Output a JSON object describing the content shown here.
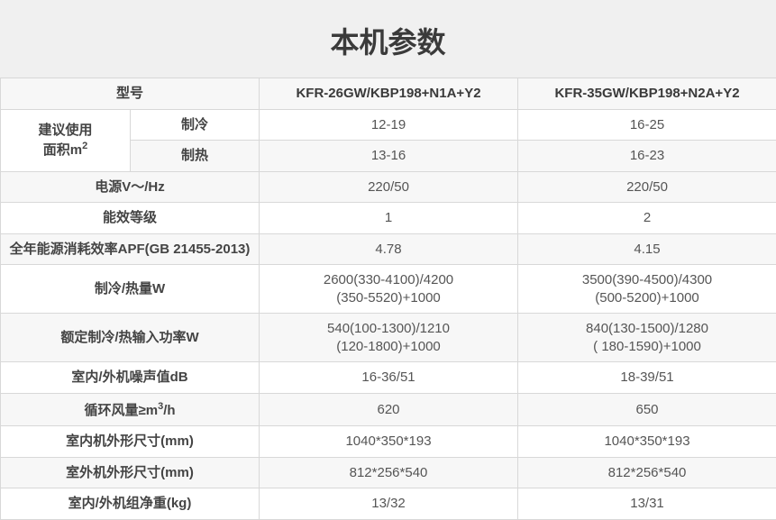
{
  "title": "本机参数",
  "colors": {
    "text": "#555555",
    "header_text": "#3a3a3a",
    "border": "#d8d8d8",
    "row_odd": "#f7f7f7",
    "row_even": "#ffffff",
    "background": "#f0f0f0"
  },
  "typography": {
    "title_fontsize": 32,
    "cell_fontsize": 15,
    "font_family": "Microsoft YaHei"
  },
  "columns": {
    "label_width": 287,
    "value_width": 287
  },
  "headers": {
    "model_label": "型号",
    "model1": "KFR-26GW/KBP198+N1A+Y2",
    "model2": "KFR-35GW/KBP198+N2A+Y2"
  },
  "area": {
    "group_label_p1": "建议使用",
    "group_label_p2": "面积m",
    "group_label_sup": "2",
    "cooling_label": "制冷",
    "heating_label": "制热",
    "cooling_v1": "12-19",
    "cooling_v2": "16-25",
    "heating_v1": "13-16",
    "heating_v2": "16-23"
  },
  "rows": [
    {
      "label": "电源V～/Hz",
      "v1": "220/50",
      "v2": "220/50"
    },
    {
      "label": "能效等级",
      "v1": "1",
      "v2": "2"
    },
    {
      "label": "全年能源消耗效率APF(GB 21455-2013)",
      "v1": "4.78",
      "v2": "4.15"
    },
    {
      "label": "制冷/热量W",
      "v1": "2600(330-4100)/4200\n(350-5520)+1000",
      "v2": "3500(390-4500)/4300\n(500-5200)+1000"
    },
    {
      "label": "额定制冷/热输入功率W",
      "v1": "540(100-1300)/1210\n(120-1800)+1000",
      "v2": "840(130-1500)/1280\n( 180-1590)+1000"
    },
    {
      "label": "室内/外机噪声值dB",
      "v1": "16-36/51",
      "v2": "18-39/51"
    },
    {
      "label_html": "循环风量≥m<span class='sup'>3</span>/h",
      "label": "循环风量≥m3/h",
      "v1": "620",
      "v2": "650"
    },
    {
      "label": "室内机外形尺寸(mm)",
      "v1": "1040*350*193",
      "v2": "1040*350*193"
    },
    {
      "label": "室外机外形尺寸(mm)",
      "v1": "812*256*540",
      "v2": "812*256*540"
    },
    {
      "label": "室内/外机组净重(kg)",
      "v1": "13/32",
      "v2": "13/31"
    }
  ]
}
